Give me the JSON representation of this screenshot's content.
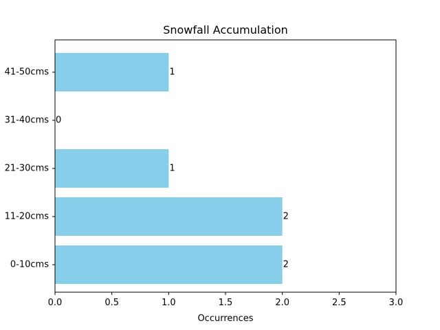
{
  "chart_data": {
    "type": "bar",
    "orientation": "horizontal",
    "title": "Snowfall Accumulation",
    "xlabel": "Occurrences",
    "ylabel": "",
    "categories": [
      "0-10cms",
      "11-20cms",
      "21-30cms",
      "31-40cms",
      "41-50cms"
    ],
    "values": [
      2,
      2,
      1,
      0,
      1
    ],
    "data_labels": [
      "2",
      "2",
      "1",
      "0",
      "1"
    ],
    "xlim": [
      0,
      3.0
    ],
    "xticks": [
      0,
      0.5,
      1.0,
      1.5,
      2.0,
      2.5,
      3.0
    ],
    "xtick_labels": [
      "0.0",
      "0.5",
      "1.0",
      "1.5",
      "2.0",
      "2.5",
      "3.0"
    ],
    "bar_color": "#87ceeb",
    "grid": false,
    "legend": "none"
  }
}
